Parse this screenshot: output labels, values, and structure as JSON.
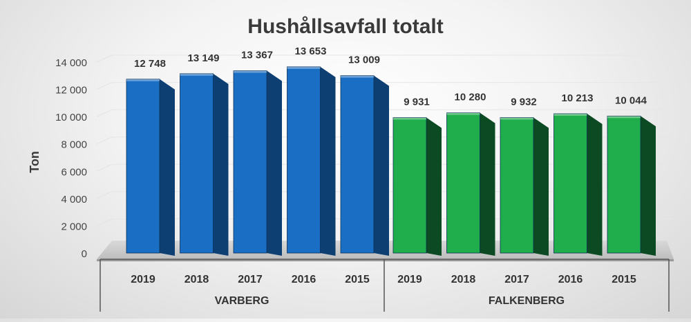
{
  "chart_data": {
    "type": "bar",
    "title": "Hushållsavfall totalt",
    "ylabel": "Ton",
    "xlabel": "",
    "ylim": [
      0,
      14000
    ],
    "yticks": [
      0,
      2000,
      4000,
      6000,
      8000,
      10000,
      12000,
      14000
    ],
    "ytick_labels": [
      "0",
      "2 000",
      "4 000",
      "6 000",
      "8 000",
      "10 000",
      "12 000",
      "14 000"
    ],
    "grid": true,
    "legend": "none",
    "groups": [
      {
        "name": "VARBERG",
        "color": "#1a6fc4",
        "side_color": "#0e3f73",
        "categories": [
          "2019",
          "2018",
          "2017",
          "2016",
          "2015"
        ],
        "values": [
          12748,
          13149,
          13367,
          13653,
          13009
        ],
        "data_labels": [
          "12 748",
          "13 149",
          "13 367",
          "13 653",
          "13 009"
        ]
      },
      {
        "name": "FALKENBERG",
        "color": "#1fae4b",
        "side_color": "#0b4a22",
        "categories": [
          "2019",
          "2018",
          "2017",
          "2016",
          "2015"
        ],
        "values": [
          9931,
          10280,
          9932,
          10213,
          10044
        ],
        "data_labels": [
          "9 931",
          "10 280",
          "9 932",
          "10 213",
          "10 044"
        ]
      }
    ]
  }
}
